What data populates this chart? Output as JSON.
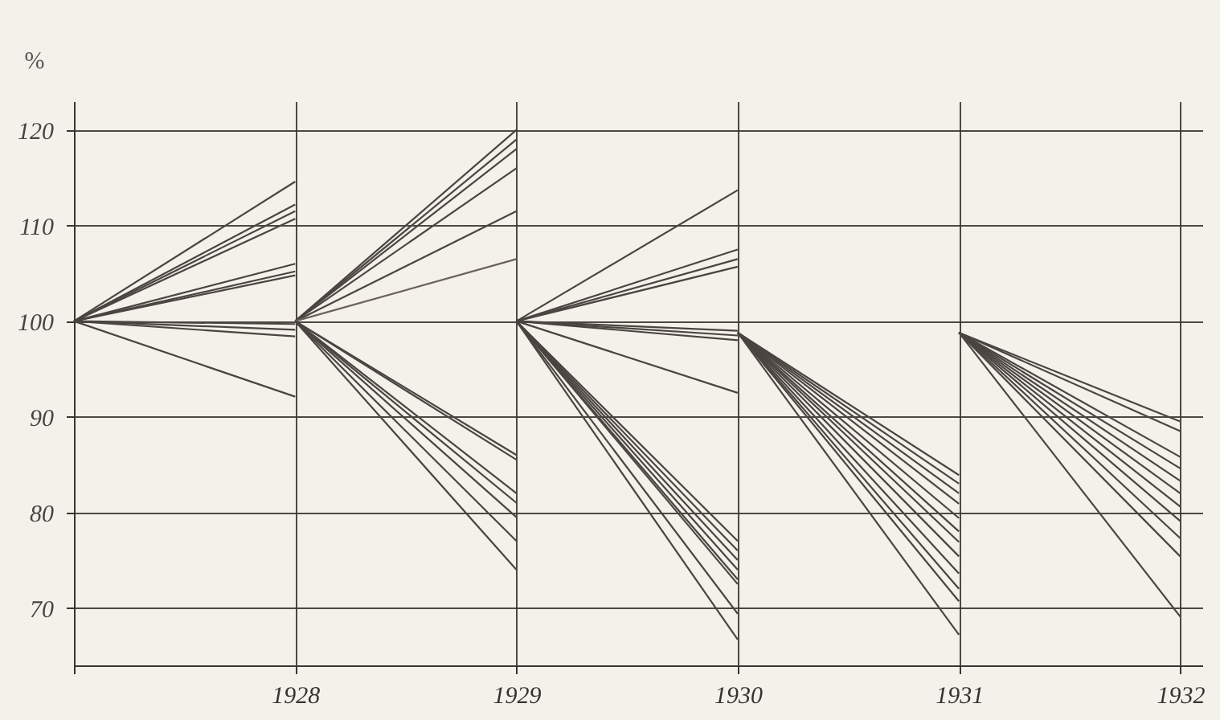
{
  "chart_data": {
    "type": "line",
    "ylabel": "%",
    "xlim": [
      1927,
      1932.1
    ],
    "xticks": [
      {
        "value": 1927,
        "label": null
      },
      1928,
      1929,
      1930,
      1931,
      1932
    ],
    "ylim": [
      64,
      123
    ],
    "yticks": [
      70,
      80,
      90,
      100,
      110,
      120
    ],
    "grid": true,
    "legend": false,
    "marker": "none",
    "line_style": "solid",
    "series": [
      {
        "color": "#4a4540",
        "x": [
          1927,
          1928
        ],
        "values": [
          100,
          114.6
        ]
      },
      {
        "color": "#4a4540",
        "x": [
          1927,
          1928
        ],
        "values": [
          100,
          112.2
        ]
      },
      {
        "color": "#4a4540",
        "x": [
          1927,
          1928
        ],
        "values": [
          100,
          111.5
        ]
      },
      {
        "color": "#4a4540",
        "x": [
          1927,
          1928
        ],
        "values": [
          100,
          110.7
        ]
      },
      {
        "color": "#4a4540",
        "x": [
          1927,
          1928
        ],
        "values": [
          100,
          106
        ]
      },
      {
        "color": "#4a4540",
        "x": [
          1927,
          1928
        ],
        "values": [
          100,
          105.2
        ]
      },
      {
        "color": "#4a4540",
        "x": [
          1927,
          1928
        ],
        "values": [
          100,
          104.8
        ]
      },
      {
        "color": "#4a4540",
        "x": [
          1927,
          1928
        ],
        "values": [
          100,
          99.7
        ]
      },
      {
        "color": "#4a4540",
        "x": [
          1927,
          1928
        ],
        "values": [
          100,
          99.1
        ]
      },
      {
        "color": "#4a4540",
        "x": [
          1927,
          1928
        ],
        "values": [
          100,
          98.4
        ]
      },
      {
        "color": "#4a4540",
        "x": [
          1927,
          1928
        ],
        "values": [
          100,
          92.1
        ]
      },
      {
        "color": "#4a4540",
        "x": [
          1928,
          1929
        ],
        "values": [
          100,
          120
        ]
      },
      {
        "color": "#4a4540",
        "x": [
          1928,
          1929
        ],
        "values": [
          100,
          119
        ]
      },
      {
        "color": "#4a4540",
        "x": [
          1928,
          1929
        ],
        "values": [
          100,
          118
        ]
      },
      {
        "color": "#4a4540",
        "x": [
          1928,
          1929
        ],
        "values": [
          100,
          116
        ]
      },
      {
        "color": "#4a4540",
        "x": [
          1928,
          1929
        ],
        "values": [
          100,
          111.5
        ]
      },
      {
        "color": "#6a625a",
        "x": [
          1928,
          1929
        ],
        "values": [
          100,
          106.5
        ]
      },
      {
        "color": "#4a4540",
        "x": [
          1928,
          1929
        ],
        "values": [
          100,
          86
        ]
      },
      {
        "color": "#4a4540",
        "x": [
          1928,
          1929
        ],
        "values": [
          100,
          85.5
        ]
      },
      {
        "color": "#4a4540",
        "x": [
          1928,
          1929
        ],
        "values": [
          100,
          82
        ]
      },
      {
        "color": "#4a4540",
        "x": [
          1928,
          1929
        ],
        "values": [
          100,
          81
        ]
      },
      {
        "color": "#4a4540",
        "x": [
          1928,
          1929
        ],
        "values": [
          100,
          79.5
        ]
      },
      {
        "color": "#4a4540",
        "x": [
          1928,
          1929
        ],
        "values": [
          100,
          77
        ]
      },
      {
        "color": "#4a4540",
        "x": [
          1928,
          1929
        ],
        "values": [
          100,
          74
        ]
      },
      {
        "color": "#4a4540",
        "x": [
          1929,
          1930
        ],
        "values": [
          100,
          113.7
        ]
      },
      {
        "color": "#4a4540",
        "x": [
          1929,
          1930
        ],
        "values": [
          100,
          107.5
        ]
      },
      {
        "color": "#4a4540",
        "x": [
          1929,
          1930
        ],
        "values": [
          100,
          106.5
        ]
      },
      {
        "color": "#4a4540",
        "x": [
          1929,
          1930
        ],
        "values": [
          100,
          105.7
        ]
      },
      {
        "color": "#4a4540",
        "x": [
          1929,
          1930
        ],
        "values": [
          100,
          99
        ]
      },
      {
        "color": "#4a4540",
        "x": [
          1929,
          1930
        ],
        "values": [
          100,
          98.5
        ]
      },
      {
        "color": "#4a4540",
        "x": [
          1929,
          1930
        ],
        "values": [
          100,
          98
        ]
      },
      {
        "color": "#4a4540",
        "x": [
          1929,
          1930
        ],
        "values": [
          100,
          92.5
        ]
      },
      {
        "color": "#4a4540",
        "x": [
          1929,
          1930
        ],
        "values": [
          100,
          77
        ]
      },
      {
        "color": "#4a4540",
        "x": [
          1929,
          1930
        ],
        "values": [
          100,
          76
        ]
      },
      {
        "color": "#4a4540",
        "x": [
          1929,
          1930
        ],
        "values": [
          100,
          75
        ]
      },
      {
        "color": "#4a4540",
        "x": [
          1929,
          1930
        ],
        "values": [
          100,
          74
        ]
      },
      {
        "color": "#4a4540",
        "x": [
          1929,
          1930
        ],
        "values": [
          100,
          73
        ]
      },
      {
        "color": "#4a4540",
        "x": [
          1929,
          1930
        ],
        "values": [
          100,
          72.5
        ]
      },
      {
        "color": "#4a4540",
        "x": [
          1929,
          1930
        ],
        "values": [
          100,
          69.4
        ]
      },
      {
        "color": "#4a4540",
        "x": [
          1929,
          1930
        ],
        "values": [
          100,
          66.7
        ]
      },
      {
        "color": "#4a4540",
        "x": [
          1930,
          1931
        ],
        "values": [
          98.8,
          83.9
        ]
      },
      {
        "color": "#4a4540",
        "x": [
          1930,
          1931
        ],
        "values": [
          98.8,
          83
        ]
      },
      {
        "color": "#4a4540",
        "x": [
          1930,
          1931
        ],
        "values": [
          98.8,
          82
        ]
      },
      {
        "color": "#4a4540",
        "x": [
          1930,
          1931
        ],
        "values": [
          98.8,
          80.9
        ]
      },
      {
        "color": "#4a4540",
        "x": [
          1930,
          1931
        ],
        "values": [
          98.8,
          79.4
        ]
      },
      {
        "color": "#4a4540",
        "x": [
          1930,
          1931
        ],
        "values": [
          98.8,
          78
        ]
      },
      {
        "color": "#4a4540",
        "x": [
          1930,
          1931
        ],
        "values": [
          98.8,
          76.9
        ]
      },
      {
        "color": "#4a4540",
        "x": [
          1930,
          1931
        ],
        "values": [
          98.8,
          75.4
        ]
      },
      {
        "color": "#4a4540",
        "x": [
          1930,
          1931
        ],
        "values": [
          98.8,
          73.6
        ]
      },
      {
        "color": "#4a4540",
        "x": [
          1930,
          1931
        ],
        "values": [
          98.8,
          72
        ]
      },
      {
        "color": "#4a4540",
        "x": [
          1930,
          1931
        ],
        "values": [
          98.8,
          70.7
        ]
      },
      {
        "color": "#4a4540",
        "x": [
          1930,
          1931
        ],
        "values": [
          98.8,
          67.2
        ]
      },
      {
        "color": "#4a4540",
        "x": [
          1931,
          1932
        ],
        "values": [
          98.8,
          89.5
        ]
      },
      {
        "color": "#4a4540",
        "x": [
          1931,
          1932
        ],
        "values": [
          98.8,
          88.5
        ]
      },
      {
        "color": "#4a4540",
        "x": [
          1931,
          1932
        ],
        "values": [
          98.8,
          85.8
        ]
      },
      {
        "color": "#4a4540",
        "x": [
          1931,
          1932
        ],
        "values": [
          98.8,
          84.6
        ]
      },
      {
        "color": "#4a4540",
        "x": [
          1931,
          1932
        ],
        "values": [
          98.8,
          83.3
        ]
      },
      {
        "color": "#4a4540",
        "x": [
          1931,
          1932
        ],
        "values": [
          98.8,
          82
        ]
      },
      {
        "color": "#4a4540",
        "x": [
          1931,
          1932
        ],
        "values": [
          98.8,
          80.6
        ]
      },
      {
        "color": "#4a4540",
        "x": [
          1931,
          1932
        ],
        "values": [
          98.8,
          79.1
        ]
      },
      {
        "color": "#4a4540",
        "x": [
          1931,
          1932
        ],
        "values": [
          98.8,
          77.3
        ]
      },
      {
        "color": "#4a4540",
        "x": [
          1931,
          1932
        ],
        "values": [
          98.8,
          75.4
        ]
      },
      {
        "color": "#4a4540",
        "x": [
          1931,
          1932
        ],
        "values": [
          98.8,
          69.1
        ]
      }
    ]
  }
}
